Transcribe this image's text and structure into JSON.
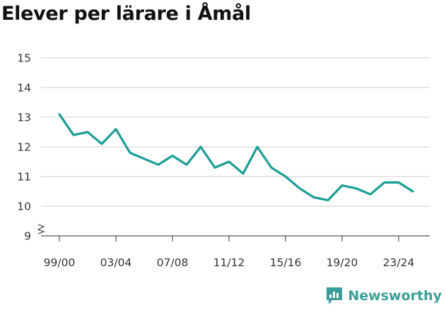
{
  "chart_data": {
    "type": "line",
    "title": "Elever per lärare i Åmål",
    "x": [
      "99/00",
      "00/01",
      "01/02",
      "02/03",
      "03/04",
      "04/05",
      "05/06",
      "06/07",
      "07/08",
      "08/09",
      "09/10",
      "10/11",
      "11/12",
      "12/13",
      "13/14",
      "14/15",
      "15/16",
      "16/17",
      "17/18",
      "18/19",
      "19/20",
      "20/21",
      "21/22",
      "22/23",
      "23/24",
      "24/25"
    ],
    "x_tick_labels": [
      "99/00",
      "03/04",
      "07/08",
      "11/12",
      "15/16",
      "19/20",
      "23/24"
    ],
    "series": [
      {
        "values": [
          13.1,
          12.4,
          12.5,
          12.1,
          12.6,
          11.8,
          11.6,
          11.4,
          11.7,
          11.4,
          12.0,
          11.3,
          11.5,
          11.1,
          12.0,
          11.3,
          11.0,
          10.6,
          10.3,
          10.2,
          10.7,
          10.6,
          10.4,
          10.8,
          10.8,
          10.5
        ]
      }
    ],
    "y_ticks": [
      "9",
      "10",
      "11",
      "12",
      "13",
      "14",
      "15"
    ],
    "ylim": [
      9,
      15
    ],
    "y_axis_break": true,
    "grid": true,
    "line_color": "#1a9e93"
  },
  "brand": {
    "name": "Newsworthy",
    "color": "#3a9e98",
    "icon": "newsworthy-logo-icon"
  }
}
